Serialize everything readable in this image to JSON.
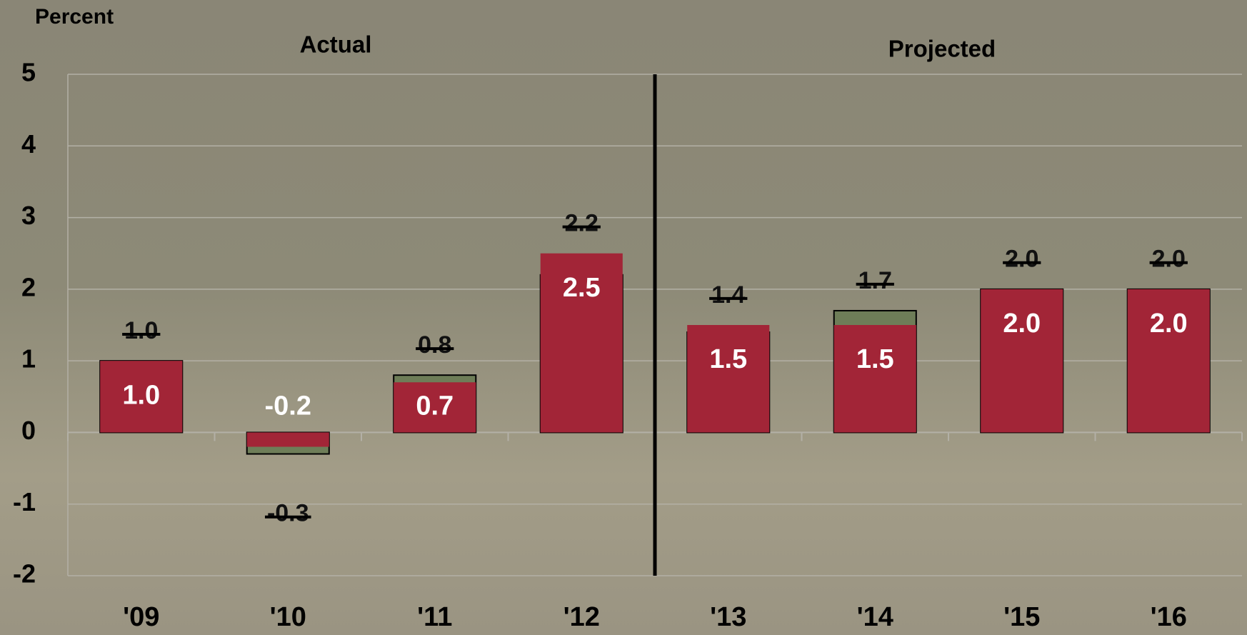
{
  "chart_data": {
    "type": "bar",
    "y_label": "Percent",
    "annotations": [
      "Actual",
      "Projected"
    ],
    "categories": [
      "'09",
      "'10",
      "'11",
      "'12",
      "'13",
      "'14",
      "'15",
      "'16"
    ],
    "series": [
      {
        "color": "#6e7d58",
        "values": [
          1.0,
          -0.3,
          0.8,
          2.2,
          1.4,
          1.7,
          2.0,
          2.0
        ],
        "value_labels": [
          "1.0",
          "-0.3",
          "0.8",
          "2.2",
          "1.4",
          "1.7",
          "2.0",
          "2.0"
        ]
      },
      {
        "color": "#a22537",
        "values": [
          1.0,
          -0.2,
          0.7,
          2.5,
          1.5,
          1.5,
          2.0,
          2.0
        ],
        "value_labels": [
          "1.0",
          "-0.2",
          "0.7",
          "2.5",
          "1.5",
          "1.5",
          "2.0",
          "2.0"
        ]
      }
    ],
    "ylim": [
      -2,
      5
    ],
    "yticks": [
      -2,
      -1,
      0,
      1,
      2,
      3,
      4,
      5
    ],
    "grid": true
  }
}
